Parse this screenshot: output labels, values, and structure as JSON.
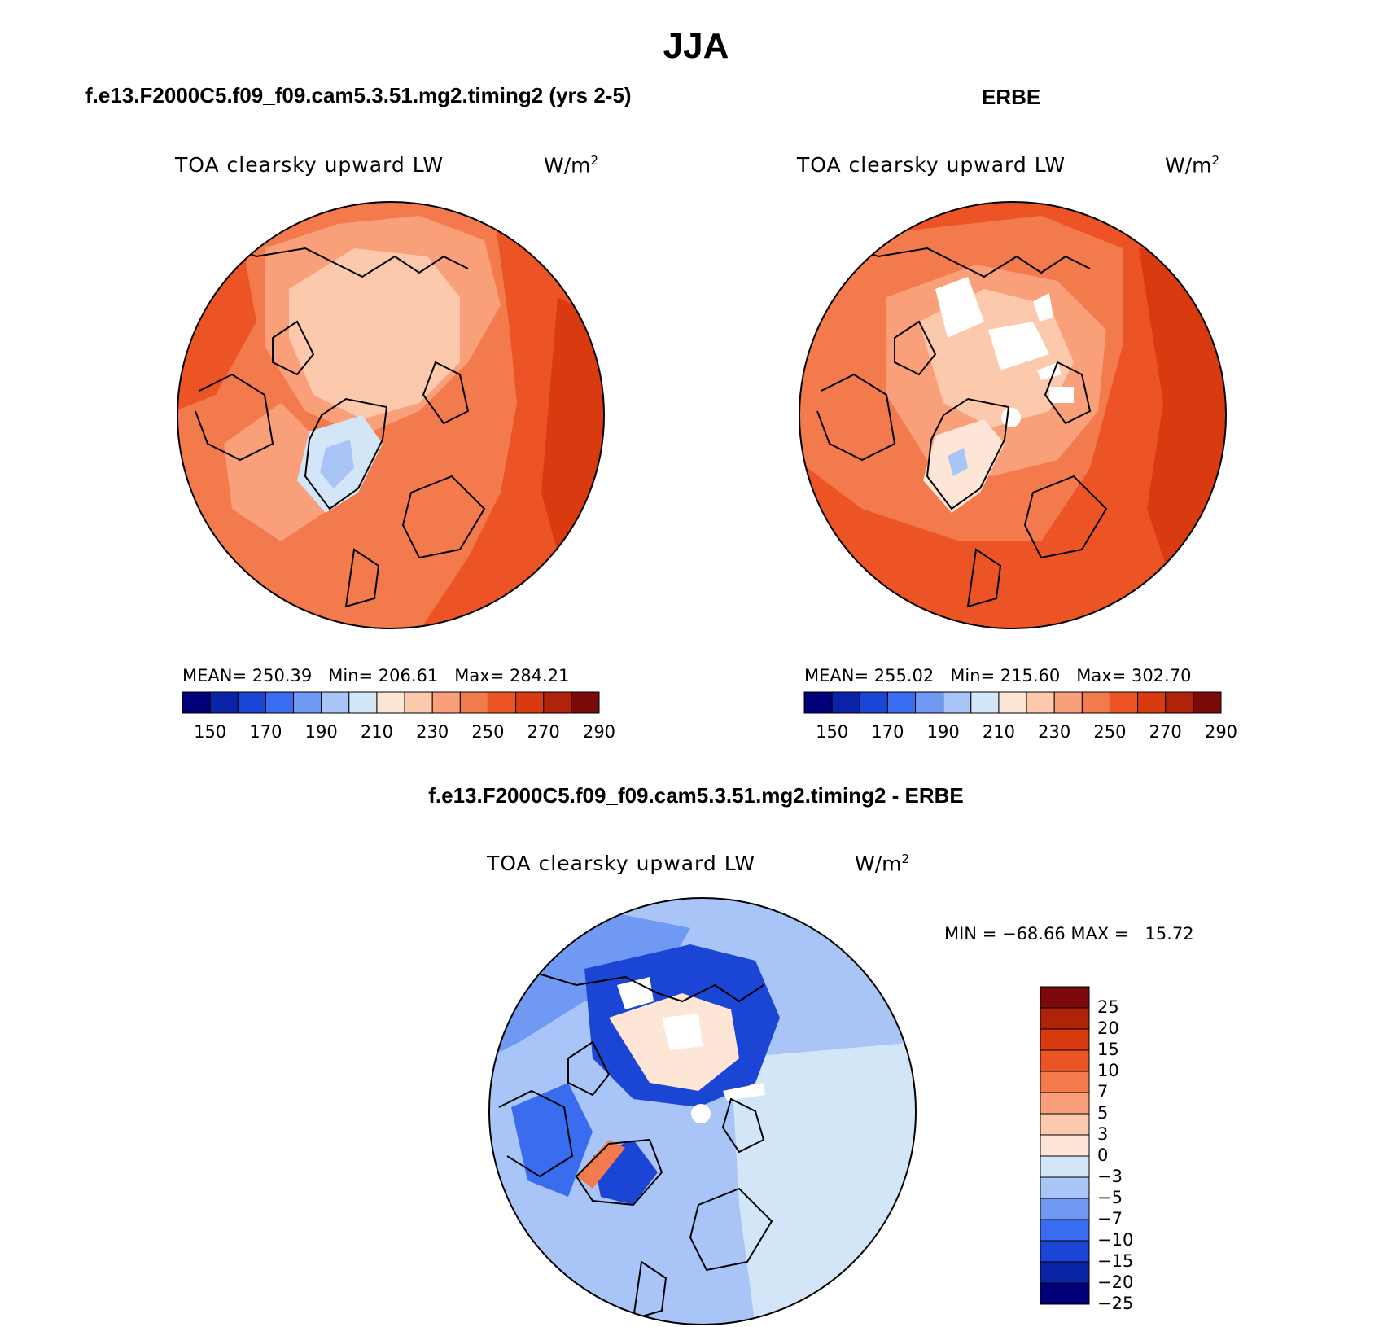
{
  "figure": {
    "title": "JJA"
  },
  "panels": [
    {
      "title": "f.e13.F2000C5.f09_f09.cam5.3.51.mg2.timing2 (yrs 2-5)",
      "variable": "TOA clearsky upward LW",
      "units_base": "W/m",
      "units_exp": "2",
      "stats": "MEAN= 250.39   Min= 206.61   Max= 284.21",
      "colorbar_ticks": [
        "150",
        "170",
        "190",
        "210",
        "230",
        "250",
        "270",
        "290"
      ]
    },
    {
      "title": "ERBE",
      "variable": "TOA clearsky upward LW",
      "units_base": "W/m",
      "units_exp": "2",
      "stats": "MEAN= 255.02   Min= 215.60   Max= 302.70",
      "colorbar_ticks": [
        "150",
        "170",
        "190",
        "210",
        "230",
        "250",
        "270",
        "290"
      ]
    },
    {
      "title": "f.e13.F2000C5.f09_f09.cam5.3.51.mg2.timing2 - ERBE",
      "variable": "TOA clearsky upward LW",
      "units_base": "W/m",
      "units_exp": "2",
      "stats": "MIN = −68.66 MAX =   15.72",
      "colorbar_ticks": [
        "25",
        "20",
        "15",
        "10",
        "7",
        "5",
        "3",
        "0",
        "−3",
        "−5",
        "−7",
        "−10",
        "−15",
        "−20",
        "−25"
      ]
    }
  ],
  "colors": {
    "abs_scale": [
      "#00007a",
      "#0a24a8",
      "#1b45d4",
      "#3a6cf0",
      "#6f99f2",
      "#a9c4f7",
      "#d3e6f8",
      "#fde6d5",
      "#fcc9ad",
      "#f9a07a",
      "#f37a4d",
      "#ec5425",
      "#d93a10",
      "#b0220a",
      "#7c0a0a"
    ],
    "diff_scale": [
      "#7c0a0a",
      "#b0220a",
      "#d93a10",
      "#ec5425",
      "#f37a4d",
      "#f9a07a",
      "#fcc9ad",
      "#fde6d5",
      "#d3e6f8",
      "#a9c4f7",
      "#6f99f2",
      "#3a6cf0",
      "#1b45d4",
      "#0a24a8",
      "#00007a"
    ]
  }
}
